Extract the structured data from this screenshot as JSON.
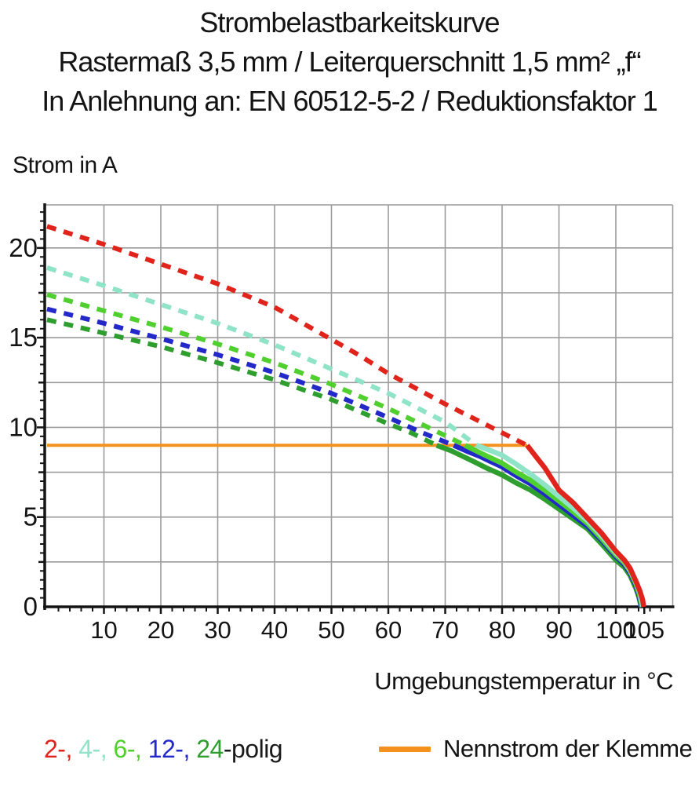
{
  "header": {
    "title": "Strombelastbarkeitskurve",
    "subtitle1": "Rastermaß 3,5 mm / Leiterquerschnitt 1,5 mm² „f“",
    "subtitle2": "In Anlehnung an: EN 60512-5-2 / Reduktionsfaktor 1"
  },
  "chart_data": {
    "type": "line",
    "title": "Strombelastbarkeitskurve",
    "xlabel": "Umgebungstemperatur in °C",
    "ylabel": "Strom in A",
    "xlim": [
      0,
      110
    ],
    "ylim": [
      0,
      22.4
    ],
    "x_major_ticks": [
      10,
      20,
      30,
      40,
      50,
      60,
      70,
      80,
      90,
      100,
      105
    ],
    "y_major_ticks": [
      0,
      5,
      10,
      15,
      20
    ],
    "x_minor_step": 2,
    "y_minor_step": 0.5,
    "grid": {
      "x_step": 10,
      "y_step": 2.5,
      "color": "#9b9b9b",
      "on": true
    },
    "axis_color": "#141414",
    "legend_position": "bottom",
    "nominal_current": {
      "label": "Nennstrom der Klemme",
      "color": "#f5921e",
      "value_a": 9,
      "x_start": 0,
      "x_end": 84.4
    },
    "series": [
      {
        "name": "2-polig",
        "color": "#e0241c",
        "dashed_points": [
          [
            0,
            21.2
          ],
          [
            10,
            20.2
          ],
          [
            20,
            19.1
          ],
          [
            30,
            18.0
          ],
          [
            40,
            16.7
          ],
          [
            45,
            15.8
          ],
          [
            50,
            14.9
          ],
          [
            55,
            14.0
          ],
          [
            60,
            13.0
          ],
          [
            65,
            12.15
          ],
          [
            70,
            11.3
          ],
          [
            75,
            10.5
          ],
          [
            80,
            9.7
          ],
          [
            84.4,
            9.0
          ]
        ],
        "solid_points": [
          [
            84.4,
            9.0
          ],
          [
            86,
            8.35
          ],
          [
            87.5,
            7.75
          ],
          [
            90,
            6.5
          ],
          [
            92.5,
            5.8
          ],
          [
            95,
            4.95
          ],
          [
            97.5,
            4.1
          ],
          [
            100,
            3.1
          ],
          [
            101.5,
            2.6
          ],
          [
            102.5,
            2.15
          ],
          [
            103.5,
            1.45
          ],
          [
            104.2,
            0.9
          ],
          [
            104.7,
            0.4
          ],
          [
            104.9,
            0
          ]
        ]
      },
      {
        "name": "4-polig",
        "color": "#8fe3c6",
        "dashed_points": [
          [
            0,
            18.9
          ],
          [
            10,
            17.9
          ],
          [
            20,
            16.85
          ],
          [
            30,
            15.8
          ],
          [
            40,
            14.6
          ],
          [
            50,
            13.25
          ],
          [
            60,
            11.9
          ],
          [
            65,
            11.1
          ],
          [
            70,
            10.3
          ],
          [
            75.5,
            9.0
          ]
        ],
        "solid_points": [
          [
            75.5,
            9.0
          ],
          [
            78,
            8.7
          ],
          [
            80,
            8.45
          ],
          [
            82.5,
            7.95
          ],
          [
            85,
            7.4
          ],
          [
            87.5,
            6.8
          ],
          [
            90,
            6.15
          ],
          [
            92.5,
            5.5
          ],
          [
            95,
            4.8
          ],
          [
            97.5,
            3.95
          ],
          [
            100,
            3.0
          ],
          [
            101.5,
            2.55
          ],
          [
            102.5,
            2.05
          ],
          [
            103.5,
            1.4
          ],
          [
            104.2,
            0.8
          ],
          [
            104.75,
            0
          ]
        ]
      },
      {
        "name": "6-polig",
        "color": "#4fd02e",
        "dashed_points": [
          [
            0,
            17.4
          ],
          [
            10,
            16.5
          ],
          [
            20,
            15.6
          ],
          [
            30,
            14.65
          ],
          [
            40,
            13.6
          ],
          [
            50,
            12.4
          ],
          [
            60,
            11.05
          ],
          [
            67,
            10.0
          ],
          [
            73.5,
            9.0
          ]
        ],
        "solid_points": [
          [
            73.5,
            9.0
          ],
          [
            76,
            8.6
          ],
          [
            78,
            8.3
          ],
          [
            80,
            8.0
          ],
          [
            82.5,
            7.5
          ],
          [
            85,
            7.05
          ],
          [
            87.5,
            6.5
          ],
          [
            90,
            5.9
          ],
          [
            92.5,
            5.3
          ],
          [
            95,
            4.65
          ],
          [
            97.5,
            3.8
          ],
          [
            100,
            2.9
          ],
          [
            101.5,
            2.45
          ],
          [
            102.5,
            2.0
          ],
          [
            103.5,
            1.3
          ],
          [
            104.1,
            0.75
          ],
          [
            104.65,
            0
          ]
        ]
      },
      {
        "name": "12-polig",
        "color": "#2328c8",
        "dashed_points": [
          [
            0,
            16.6
          ],
          [
            10,
            15.8
          ],
          [
            20,
            14.95
          ],
          [
            30,
            14.05
          ],
          [
            40,
            13.05
          ],
          [
            50,
            11.9
          ],
          [
            60,
            10.55
          ],
          [
            66,
            9.7
          ],
          [
            71.5,
            9.0
          ]
        ],
        "solid_points": [
          [
            71.5,
            9.0
          ],
          [
            74,
            8.65
          ],
          [
            76,
            8.4
          ],
          [
            78,
            8.1
          ],
          [
            80,
            7.8
          ],
          [
            82.5,
            7.3
          ],
          [
            85,
            6.85
          ],
          [
            87.5,
            6.3
          ],
          [
            90,
            5.7
          ],
          [
            92.5,
            5.1
          ],
          [
            95,
            4.5
          ],
          [
            97.5,
            3.7
          ],
          [
            100,
            2.8
          ],
          [
            101.5,
            2.35
          ],
          [
            102.5,
            1.9
          ],
          [
            103.5,
            1.2
          ],
          [
            104.0,
            0.7
          ],
          [
            104.55,
            0
          ]
        ]
      },
      {
        "name": "24-polig",
        "color": "#2e9e2e",
        "dashed_points": [
          [
            0,
            16.0
          ],
          [
            10,
            15.25
          ],
          [
            20,
            14.5
          ],
          [
            30,
            13.6
          ],
          [
            40,
            12.65
          ],
          [
            50,
            11.55
          ],
          [
            60,
            10.2
          ],
          [
            64,
            9.7
          ],
          [
            68.5,
            9.0
          ]
        ],
        "solid_points": [
          [
            68.5,
            9.0
          ],
          [
            71,
            8.7
          ],
          [
            73,
            8.4
          ],
          [
            75,
            8.1
          ],
          [
            77.5,
            7.7
          ],
          [
            80,
            7.35
          ],
          [
            82.5,
            6.9
          ],
          [
            85,
            6.5
          ],
          [
            87.5,
            6.0
          ],
          [
            90,
            5.45
          ],
          [
            92.5,
            4.9
          ],
          [
            95,
            4.35
          ],
          [
            97.5,
            3.5
          ],
          [
            100,
            2.6
          ],
          [
            101.5,
            2.2
          ],
          [
            102.5,
            1.75
          ],
          [
            103.5,
            1.05
          ],
          [
            104.0,
            0.6
          ],
          [
            104.45,
            0
          ]
        ]
      }
    ],
    "legend_parts": [
      {
        "text": "2-, ",
        "color": "#e0241c"
      },
      {
        "text": "4-, ",
        "color": "#8fe3c6"
      },
      {
        "text": "6-, ",
        "color": "#4fd02e"
      },
      {
        "text": "12-, ",
        "color": "#2328c8"
      },
      {
        "text": "24",
        "color": "#2e9e2e"
      },
      {
        "text": "-polig",
        "color": "#1a1a1a"
      }
    ]
  }
}
